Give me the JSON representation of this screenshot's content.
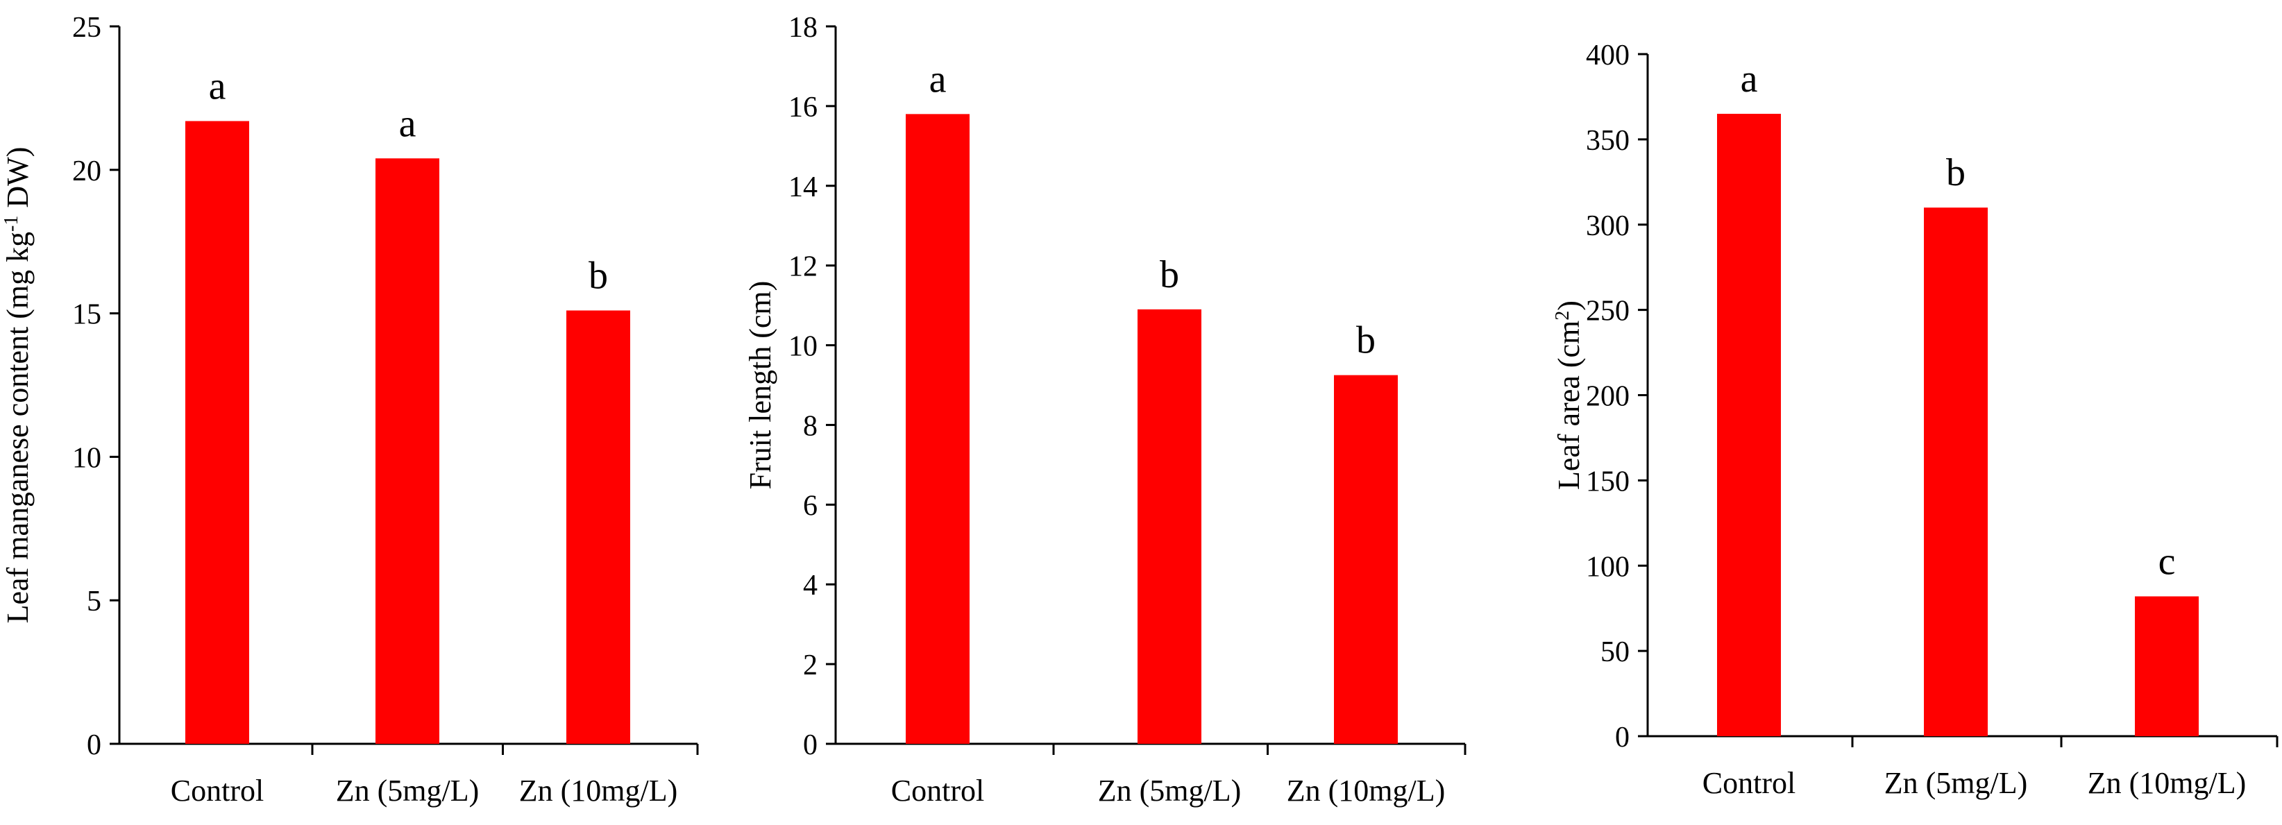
{
  "chart_data": [
    {
      "type": "bar",
      "categories": [
        "Control",
        "Zn (5mg/L)",
        "Zn (10mg/L)"
      ],
      "values": [
        21.7,
        20.4,
        15.1
      ],
      "significance": [
        "a",
        "a",
        "b"
      ],
      "ylabel_main": "Leaf manganese content (mg kg",
      "ylabel_sup": "-1",
      "ylabel_end": " DW)",
      "ylim": [
        0,
        25
      ],
      "yticks": [
        "0",
        "5",
        "10",
        "15",
        "20",
        "25"
      ],
      "color": "#ff0000",
      "grid": false
    },
    {
      "type": "bar",
      "categories": [
        "Control",
        "Zn (5mg/L)",
        "Zn (10mg/L)"
      ],
      "values": [
        15.8,
        10.9,
        9.25
      ],
      "significance": [
        "a",
        "b",
        "b"
      ],
      "ylabel_main": "Fruit length (cm)",
      "ylabel_sup": "",
      "ylabel_end": "",
      "ylim": [
        0,
        18
      ],
      "yticks": [
        "0",
        "2",
        "4",
        "6",
        "8",
        "10",
        "12",
        "14",
        "16",
        "18"
      ],
      "color": "#ff0000",
      "grid": false
    },
    {
      "type": "bar",
      "categories": [
        "Control",
        "Zn (5mg/L)",
        "Zn (10mg/L)"
      ],
      "values": [
        365,
        310,
        82
      ],
      "significance": [
        "a",
        "b",
        "c"
      ],
      "ylabel_main": "Leaf area (cm",
      "ylabel_sup": "2",
      "ylabel_end": ")",
      "ylim": [
        0,
        400
      ],
      "yticks": [
        "0",
        "50",
        "100",
        "150",
        "200",
        "250",
        "300",
        "350",
        "400"
      ],
      "color": "#ff0000",
      "grid": false
    }
  ]
}
